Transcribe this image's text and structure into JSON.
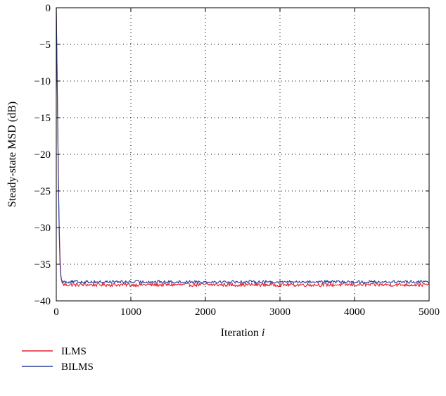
{
  "chart_data": {
    "type": "line",
    "xlabel": "Iteration",
    "xlabel_var": "i",
    "ylabel": "Steady-state MSD (dB)",
    "xlim": [
      0,
      5000
    ],
    "ylim": [
      -40,
      0
    ],
    "xticks": [
      0,
      1000,
      2000,
      3000,
      4000,
      5000
    ],
    "yticks": [
      0,
      -5,
      -10,
      -15,
      -20,
      -25,
      -30,
      -35,
      -40
    ],
    "ytick_labels": [
      "0",
      "−5",
      "−10",
      "−15",
      "−20",
      "−25",
      "−30",
      "−35",
      "−40"
    ],
    "grid": "dotted",
    "legend_position": "below-left",
    "series": [
      {
        "name": "ILMS",
        "color": "#e8202a",
        "x": [
          0,
          10,
          20,
          30,
          40,
          50,
          60,
          70,
          80,
          100,
          150,
          250,
          400,
          600,
          800,
          1000,
          1200,
          1500,
          2000,
          2500,
          3000,
          3500,
          4000,
          4500,
          5000
        ],
        "values": [
          0,
          -8,
          -16,
          -24,
          -30,
          -34,
          -36.3,
          -37.2,
          -37.6,
          -37.8,
          -37.8,
          -37.8,
          -37.8,
          -37.8,
          -37.8,
          -37.8,
          -37.8,
          -37.8,
          -37.8,
          -37.8,
          -37.8,
          -37.8,
          -37.8,
          -37.8,
          -37.8
        ],
        "noise_db": 0.25
      },
      {
        "name": "BILMS",
        "color": "#2c3e9c",
        "x": [
          0,
          10,
          20,
          30,
          40,
          50,
          60,
          70,
          80,
          100,
          150,
          250,
          400,
          600,
          800,
          1000,
          1200,
          1500,
          2000,
          2500,
          3000,
          3500,
          4000,
          4500,
          5000
        ],
        "values": [
          0,
          -8.5,
          -17,
          -25,
          -31,
          -35,
          -36.6,
          -37.1,
          -37.3,
          -37.4,
          -37.4,
          -37.4,
          -37.4,
          -37.4,
          -37.4,
          -37.4,
          -37.4,
          -37.4,
          -37.4,
          -37.4,
          -37.4,
          -37.4,
          -37.4,
          -37.4,
          -37.4
        ],
        "noise_db": 0.2
      }
    ]
  }
}
